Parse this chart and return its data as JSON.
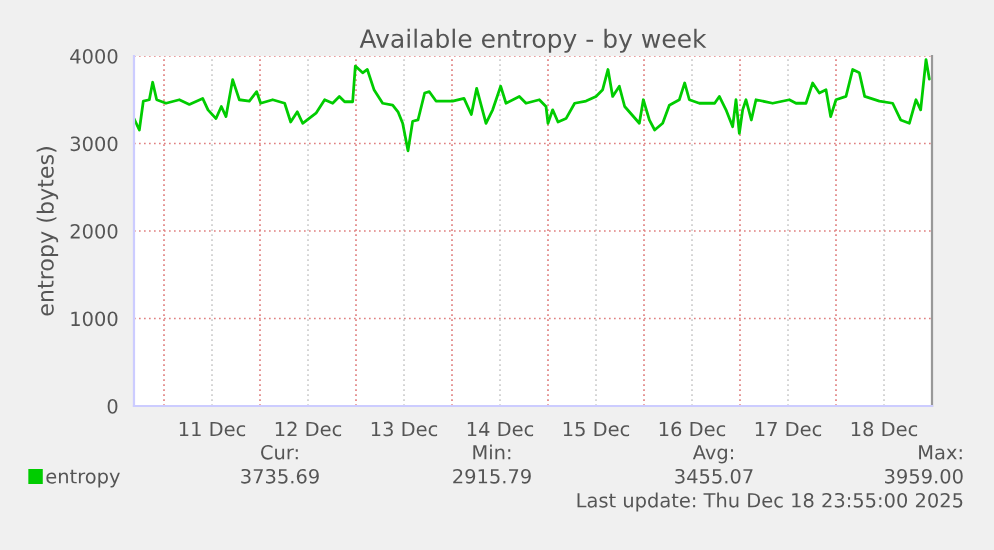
{
  "chart_data": {
    "type": "line",
    "title": "Available entropy - by week",
    "ylabel": "entropy (bytes)",
    "x": [
      "2025-12-10T16:30",
      "2025-12-10T17:50",
      "2025-12-10T18:50",
      "2025-12-10T20:20",
      "2025-12-10T21:10",
      "2025-12-10T22:10",
      "2025-12-11T00:30",
      "2025-12-11T03:50",
      "2025-12-11T06:20",
      "2025-12-11T09:40",
      "2025-12-11T11:00",
      "2025-12-11T13:00",
      "2025-12-11T14:20",
      "2025-12-11T15:30",
      "2025-12-11T17:10",
      "2025-12-11T18:50",
      "2025-12-11T21:20",
      "2025-12-11T23:10",
      "2025-12-12T00:10",
      "2025-12-12T03:10",
      "2025-12-12T06:10",
      "2025-12-12T07:40",
      "2025-12-12T09:20",
      "2025-12-12T10:40",
      "2025-12-12T14:00",
      "2025-12-12T16:10",
      "2025-12-12T18:10",
      "2025-12-12T19:50",
      "2025-12-12T21:10",
      "2025-12-12T23:10",
      "2025-12-12T23:50",
      "2025-12-13T01:40",
      "2025-12-13T02:50",
      "2025-12-13T04:30",
      "2025-12-13T06:40",
      "2025-12-13T09:10",
      "2025-12-13T10:30",
      "2025-12-13T11:40",
      "2025-12-13T13:00",
      "2025-12-13T14:10",
      "2025-12-13T15:30",
      "2025-12-13T17:10",
      "2025-12-13T18:20",
      "2025-12-13T20:00",
      "2025-12-14T00:10",
      "2025-12-14T03:00",
      "2025-12-14T04:50",
      "2025-12-14T06:10",
      "2025-12-14T08:30",
      "2025-12-14T10:10",
      "2025-12-14T12:10",
      "2025-12-14T13:30",
      "2025-12-14T16:50",
      "2025-12-14T18:30",
      "2025-12-14T21:50",
      "2025-12-14T23:30",
      "2025-12-15T00:00",
      "2025-12-15T01:10",
      "2025-12-15T02:30",
      "2025-12-15T04:30",
      "2025-12-15T06:40",
      "2025-12-15T09:30",
      "2025-12-15T12:00",
      "2025-12-15T13:40",
      "2025-12-15T15:00",
      "2025-12-15T16:10",
      "2025-12-15T17:50",
      "2025-12-15T19:10",
      "2025-12-15T22:50",
      "2025-12-15T23:50",
      "2025-12-16T01:20",
      "2025-12-16T02:40",
      "2025-12-16T04:40",
      "2025-12-16T06:20",
      "2025-12-16T08:50",
      "2025-12-16T10:10",
      "2025-12-16T11:20",
      "2025-12-16T13:50",
      "2025-12-16T17:40",
      "2025-12-16T18:50",
      "2025-12-16T20:30",
      "2025-12-16T22:10",
      "2025-12-16T23:00",
      "2025-12-16T23:50",
      "2025-12-17T00:40",
      "2025-12-17T01:30",
      "2025-12-17T02:50",
      "2025-12-17T04:00",
      "2025-12-17T08:10",
      "2025-12-17T12:20",
      "2025-12-17T14:00",
      "2025-12-17T16:30",
      "2025-12-17T18:10",
      "2025-12-17T19:50",
      "2025-12-17T21:30",
      "2025-12-17T22:40",
      "2025-12-18T00:00",
      "2025-12-18T02:30",
      "2025-12-18T04:10",
      "2025-12-18T05:50",
      "2025-12-18T07:10",
      "2025-12-18T10:50",
      "2025-12-18T14:10",
      "2025-12-18T16:10",
      "2025-12-18T18:20",
      "2025-12-18T20:00",
      "2025-12-18T21:10",
      "2025-12-18T22:30",
      "2025-12-18T23:20"
    ],
    "series": [
      {
        "name": "entropy",
        "color": "#00cc00",
        "values": [
          3285,
          3154,
          3485,
          3500,
          3700,
          3500,
          3460,
          3500,
          3446,
          3515,
          3385,
          3285,
          3423,
          3308,
          3730,
          3500,
          3485,
          3592,
          3460,
          3500,
          3460,
          3246,
          3362,
          3231,
          3346,
          3500,
          3460,
          3538,
          3477,
          3477,
          3885,
          3808,
          3846,
          3615,
          3460,
          3438,
          3362,
          3231,
          2916,
          3254,
          3269,
          3577,
          3592,
          3485,
          3485,
          3515,
          3331,
          3631,
          3231,
          3385,
          3654,
          3460,
          3538,
          3460,
          3500,
          3423,
          3231,
          3385,
          3246,
          3285,
          3460,
          3485,
          3538,
          3615,
          3846,
          3538,
          3654,
          3423,
          3231,
          3500,
          3269,
          3154,
          3231,
          3438,
          3500,
          3692,
          3500,
          3460,
          3460,
          3538,
          3385,
          3192,
          3500,
          3115,
          3385,
          3500,
          3269,
          3500,
          3460,
          3500,
          3460,
          3460,
          3692,
          3577,
          3615,
          3308,
          3500,
          3538,
          3846,
          3808,
          3538,
          3485,
          3460,
          3269,
          3231,
          3500,
          3385,
          3959,
          3736
        ]
      }
    ],
    "xlim": [
      "2025-12-10T16:30",
      "2025-12-19T00:00"
    ],
    "xticks": [
      {
        "value": "2025-12-11T00:00",
        "label": null
      },
      {
        "value": "2025-12-11T12:00",
        "label": "11 Dec"
      },
      {
        "value": "2025-12-12T00:00",
        "label": null
      },
      {
        "value": "2025-12-12T12:00",
        "label": "12 Dec"
      },
      {
        "value": "2025-12-13T00:00",
        "label": null
      },
      {
        "value": "2025-12-13T12:00",
        "label": "13 Dec"
      },
      {
        "value": "2025-12-14T00:00",
        "label": null
      },
      {
        "value": "2025-12-14T12:00",
        "label": "14 Dec"
      },
      {
        "value": "2025-12-15T00:00",
        "label": null
      },
      {
        "value": "2025-12-15T12:00",
        "label": "15 Dec"
      },
      {
        "value": "2025-12-16T00:00",
        "label": null
      },
      {
        "value": "2025-12-16T12:00",
        "label": "16 Dec"
      },
      {
        "value": "2025-12-17T00:00",
        "label": null
      },
      {
        "value": "2025-12-17T12:00",
        "label": "17 Dec"
      },
      {
        "value": "2025-12-18T00:00",
        "label": null
      },
      {
        "value": "2025-12-18T12:00",
        "label": "18 Dec"
      }
    ],
    "ylim": [
      0,
      4000
    ],
    "yticks": [
      0,
      1000,
      2000,
      3000,
      4000
    ],
    "grid": true,
    "legend": "bottom left",
    "marker": "none",
    "line_style": "solid",
    "annotations": [
      "Cur:",
      "Min:",
      "Avg:",
      "Max:",
      "3735.69",
      "2915.79",
      "3455.07",
      "3959.00",
      "Last update: Thu Dec 18 23:55:00 2025"
    ]
  }
}
